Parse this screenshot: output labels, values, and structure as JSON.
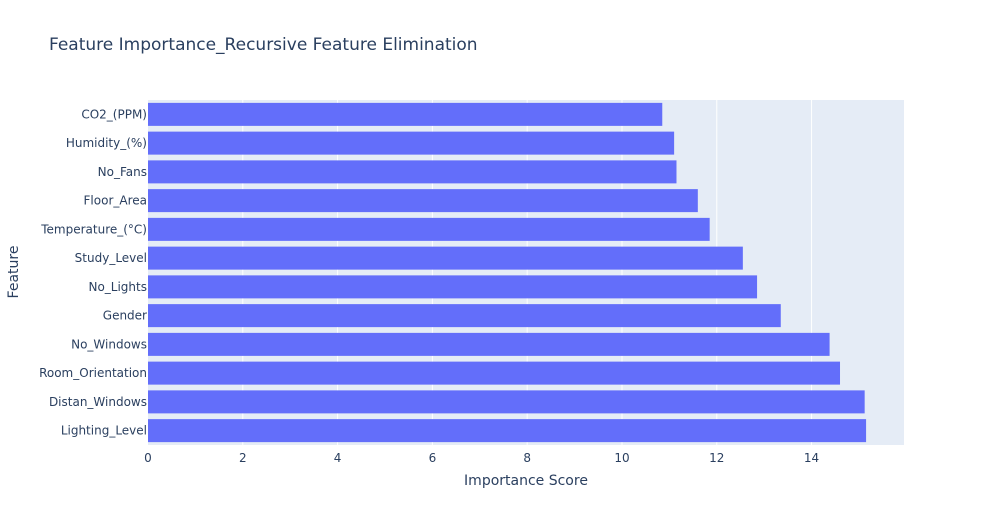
{
  "chart_data": {
    "type": "bar",
    "orientation": "horizontal",
    "title": "Feature Importance_Recursive Feature Elimination",
    "xlabel": "Importance Score",
    "ylabel": "Feature",
    "xlim": [
      0,
      15.95
    ],
    "xticks": [
      "0",
      "2",
      "4",
      "6",
      "8",
      "10",
      "12",
      "14"
    ],
    "grid": true,
    "colors": {
      "bar": "#636efa",
      "plot_bg": "#e5ecf6",
      "grid": "#ffffff",
      "text": "#2a3f5f"
    },
    "categories": [
      "CO2_(PPM)",
      "Humidity_(%)",
      "No_Fans",
      "Floor_Area",
      "Temperature_(°C)",
      "Study_Level",
      "No_Lights",
      "Gender",
      "No_Windows",
      "Room_Orientation",
      "Distan_Windows",
      "Lighting_Level"
    ],
    "values": [
      10.85,
      11.1,
      11.15,
      11.6,
      11.85,
      12.55,
      12.85,
      13.35,
      14.38,
      14.6,
      15.12,
      15.15
    ]
  }
}
